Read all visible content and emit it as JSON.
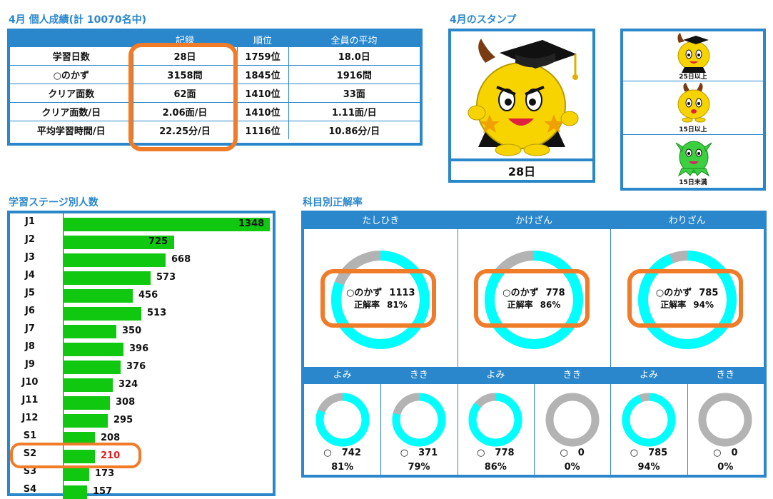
{
  "stats": {
    "title": "4月 個人成績(計 10070名中)",
    "columns": [
      "",
      "記録",
      "順位",
      "全員の平均"
    ],
    "rows": [
      [
        "学習日数",
        "28日",
        "1759位",
        "18.0日"
      ],
      [
        "○のかず",
        "3158問",
        "1845位",
        "1916問"
      ],
      [
        "クリア面数",
        "62面",
        "1410位",
        "33面"
      ],
      [
        "クリア面数/日",
        "2.06面/日",
        "1410位",
        "1.11面/日"
      ],
      [
        "平均学習時間/日",
        "22.25分/日",
        "1116位",
        "10.86分/日"
      ]
    ]
  },
  "stamp": {
    "title": "4月のスタンプ",
    "days": "28日",
    "legend": [
      "25日以上",
      "15日以上",
      "15日未満"
    ]
  },
  "stage": {
    "title": "学習ステージ別人数",
    "max": 1348,
    "highlight": "S2",
    "items": [
      {
        "label": "J1",
        "value": 1348
      },
      {
        "label": "J2",
        "value": 725
      },
      {
        "label": "J3",
        "value": 668
      },
      {
        "label": "J4",
        "value": 573
      },
      {
        "label": "J5",
        "value": 456
      },
      {
        "label": "J6",
        "value": 513
      },
      {
        "label": "J7",
        "value": 350
      },
      {
        "label": "J8",
        "value": 396
      },
      {
        "label": "J9",
        "value": 376
      },
      {
        "label": "J10",
        "value": 324
      },
      {
        "label": "J11",
        "value": 308
      },
      {
        "label": "J12",
        "value": 295
      },
      {
        "label": "S1",
        "value": 208
      },
      {
        "label": "S2",
        "value": 210
      },
      {
        "label": "S3",
        "value": 173
      },
      {
        "label": "S4",
        "value": 157
      }
    ]
  },
  "accuracy": {
    "title": "科目別正解率",
    "correct_label": "○のかず",
    "rate_label": "正解率",
    "circle_symbol": "○",
    "subjects": [
      {
        "name": "たしひき",
        "count": "1113",
        "rate": "81%",
        "pct": 81
      },
      {
        "name": "かけざん",
        "count": "778",
        "rate": "86%",
        "pct": 86
      },
      {
        "name": "わりざん",
        "count": "785",
        "rate": "94%",
        "pct": 94
      }
    ],
    "sub": [
      {
        "name": "よみ",
        "count": "742",
        "rate": "81%",
        "pct": 81
      },
      {
        "name": "きき",
        "count": "371",
        "rate": "79%",
        "pct": 79
      },
      {
        "name": "よみ",
        "count": "778",
        "rate": "86%",
        "pct": 86
      },
      {
        "name": "きき",
        "count": "0",
        "rate": "0%",
        "pct": 0
      },
      {
        "name": "よみ",
        "count": "785",
        "rate": "94%",
        "pct": 94
      },
      {
        "name": "きき",
        "count": "0",
        "rate": "0%",
        "pct": 0
      }
    ]
  },
  "colors": {
    "accent": "#2a87cc",
    "bar": "#10c810",
    "highlight": "#f07b28",
    "donut": "#00ffff",
    "donut_rest": "#b3b3b3",
    "highlight_text": "#e02020"
  }
}
